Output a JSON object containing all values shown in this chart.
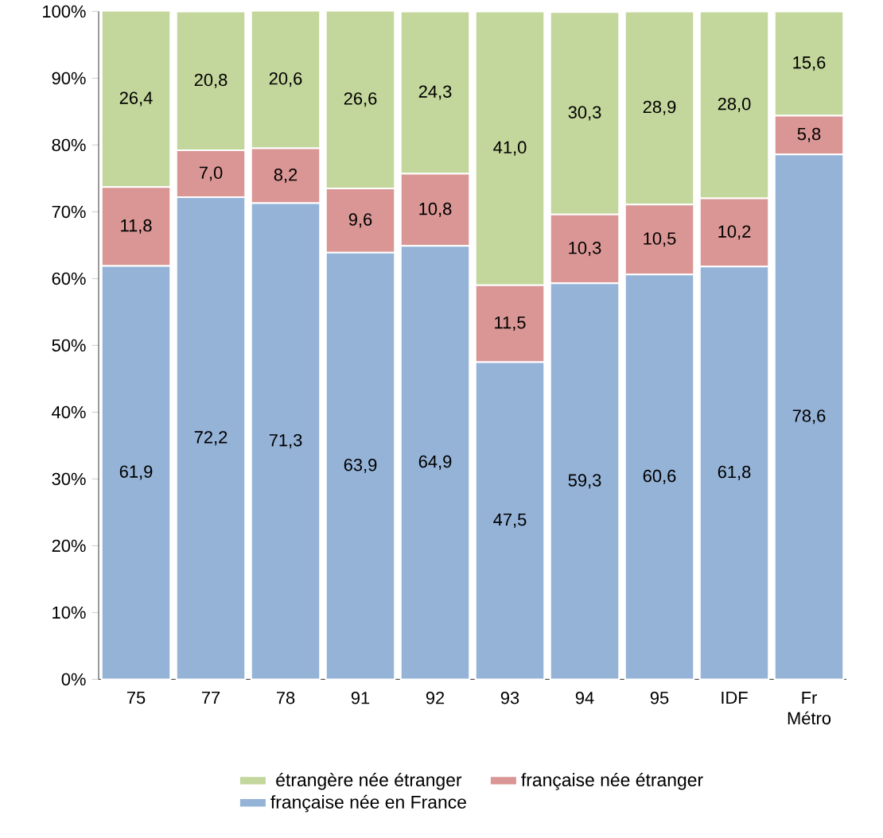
{
  "chart_data": {
    "type": "bar",
    "stacked": true,
    "legend": "bottom",
    "categories": [
      "75",
      "77",
      "78",
      "91",
      "92",
      "93",
      "94",
      "95",
      "IDF",
      "Fr Métro"
    ],
    "ylim": [
      0,
      100
    ],
    "yticks": [
      {
        "value": 0,
        "label": "0%"
      },
      {
        "value": 10,
        "label": "10%"
      },
      {
        "value": 20,
        "label": "20%"
      },
      {
        "value": 30,
        "label": "30%"
      },
      {
        "value": 40,
        "label": "40%"
      },
      {
        "value": 50,
        "label": "50%"
      },
      {
        "value": 60,
        "label": "60%"
      },
      {
        "value": 70,
        "label": "70%"
      },
      {
        "value": 80,
        "label": "80%"
      },
      {
        "value": 90,
        "label": "90%"
      },
      {
        "value": 100,
        "label": "100%"
      }
    ],
    "series": [
      {
        "name": "française née en France",
        "color": "#95b3d7",
        "values": [
          61.9,
          72.2,
          71.3,
          63.9,
          64.9,
          47.5,
          59.3,
          60.6,
          61.8,
          78.6
        ],
        "value_labels": [
          "61,9",
          "72,2",
          "71,3",
          "63,9",
          "64,9",
          "47,5",
          "59,3",
          "60,6",
          "61,8",
          "78,6"
        ]
      },
      {
        "name": "française née étranger",
        "color": "#d99694",
        "values": [
          11.8,
          7.0,
          8.2,
          9.6,
          10.8,
          11.5,
          10.3,
          10.5,
          10.2,
          5.8
        ],
        "value_labels": [
          "11,8",
          "7,0",
          "8,2",
          "9,6",
          "10,8",
          "11,5",
          "10,3",
          "10,5",
          "10,2",
          "5,8"
        ]
      },
      {
        "name": "étrangère née étranger",
        "color": "#c3d69b",
        "values": [
          26.4,
          20.8,
          20.6,
          26.6,
          24.3,
          41.0,
          30.3,
          28.9,
          28.0,
          15.6
        ],
        "value_labels": [
          "26,4",
          "20,8",
          "20,6",
          "26,6",
          "24,3",
          "41,0",
          "30,3",
          "28,9",
          "28,0",
          "15,6"
        ]
      }
    ]
  }
}
